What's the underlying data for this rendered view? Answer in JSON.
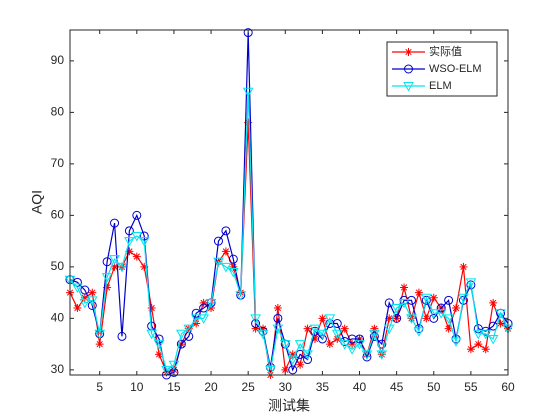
{
  "chart_data": {
    "type": "line",
    "xlabel": "测试集",
    "ylabel": "AQI",
    "x": [
      1,
      2,
      3,
      4,
      5,
      6,
      7,
      8,
      9,
      10,
      11,
      12,
      13,
      14,
      15,
      16,
      17,
      18,
      19,
      20,
      21,
      22,
      23,
      24,
      25,
      26,
      27,
      28,
      29,
      30,
      31,
      32,
      33,
      34,
      35,
      36,
      37,
      38,
      39,
      40,
      41,
      42,
      43,
      44,
      45,
      46,
      47,
      48,
      49,
      50,
      51,
      52,
      53,
      54,
      55,
      56,
      57,
      58,
      59,
      60
    ],
    "series": [
      {
        "name": "实际值",
        "color": "#ff0000",
        "marker": "asterisk",
        "values": [
          45,
          42,
          44,
          45,
          35,
          46,
          50,
          50,
          53,
          52,
          50,
          42,
          33,
          29.5,
          30,
          35,
          38,
          39,
          43,
          42,
          51,
          53,
          50,
          45,
          78,
          38,
          38,
          29,
          42,
          30,
          33,
          31,
          38,
          36,
          40,
          35,
          36,
          38,
          35,
          36,
          33,
          38,
          33,
          40,
          40,
          46,
          40,
          45,
          40,
          44,
          42,
          38,
          42,
          50,
          34,
          35,
          34,
          43,
          39,
          38
        ]
      },
      {
        "name": "WSO-ELM",
        "color": "#0000cc",
        "marker": "circle",
        "values": [
          47.5,
          47,
          45.5,
          42.5,
          37,
          51,
          58.5,
          36.5,
          57,
          60,
          56,
          38.5,
          36,
          29,
          29.5,
          35,
          36.5,
          41,
          42,
          43,
          55,
          57,
          51.5,
          44.5,
          95.5,
          39,
          37.5,
          30.5,
          40,
          35,
          30,
          33,
          32,
          37.5,
          36,
          39,
          39,
          35.5,
          36,
          36,
          32.5,
          36.5,
          35,
          43,
          40,
          43.5,
          43.5,
          38,
          43.5,
          40,
          42,
          43.5,
          36,
          43.5,
          46.5,
          38,
          37.5,
          38.5,
          41,
          39
        ]
      },
      {
        "name": "ELM",
        "color": "#00e5ee",
        "marker": "triangle-down",
        "values": [
          47.5,
          46,
          43,
          43.5,
          37,
          48,
          51.5,
          50,
          55,
          56,
          55,
          37,
          35,
          30,
          31,
          37,
          38,
          40,
          40,
          43,
          51,
          50,
          49,
          44.5,
          84,
          40,
          37,
          30,
          38,
          35,
          32,
          35,
          33,
          38,
          37,
          40,
          37,
          35,
          34,
          35,
          33,
          37,
          33,
          38,
          42,
          43,
          40,
          37.5,
          44,
          41,
          41,
          40,
          35.5,
          44,
          47,
          37,
          37,
          36,
          41,
          38
        ]
      }
    ],
    "xlim": [
      1,
      60
    ],
    "xticks": [
      5,
      10,
      15,
      20,
      25,
      30,
      35,
      40,
      45,
      50,
      55,
      60
    ],
    "ylim": [
      29,
      96
    ],
    "yticks": [
      30,
      40,
      50,
      60,
      70,
      80,
      90
    ],
    "legend": "northeast"
  }
}
